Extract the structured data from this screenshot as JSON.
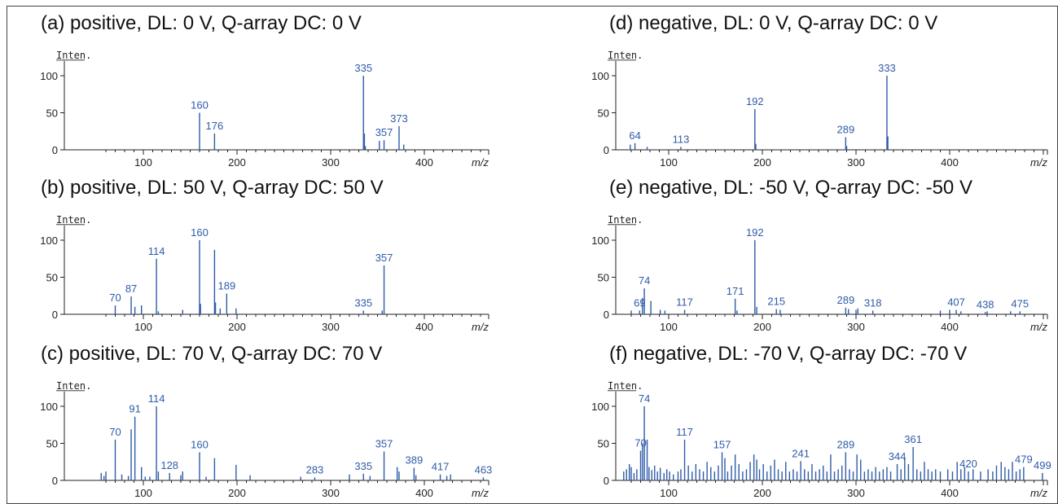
{
  "colors": {
    "peak": "#2f5ba8",
    "axis": "#222222",
    "annotation_line": "#e03030"
  },
  "chart_data": [
    {
      "type": "bar",
      "title": "(a) positive, DL: 0 V, Q-array DC: 0 V",
      "ylabel": "Inten.",
      "xlabel": "m/z",
      "xlim": [
        50,
        480
      ],
      "ylim": [
        0,
        120
      ],
      "xticks": [
        100,
        200,
        300,
        400
      ],
      "yticks": [
        0,
        50,
        100
      ],
      "peaks": [
        {
          "x": 160,
          "y": 50,
          "label": "160"
        },
        {
          "x": 176,
          "y": 22,
          "label": "176"
        },
        {
          "x": 335,
          "y": 100,
          "label": "335"
        },
        {
          "x": 336,
          "y": 22
        },
        {
          "x": 337,
          "y": 5
        },
        {
          "x": 352,
          "y": 12
        },
        {
          "x": 357,
          "y": 13,
          "label": "357"
        },
        {
          "x": 373,
          "y": 32,
          "label": "373"
        },
        {
          "x": 378,
          "y": 7
        }
      ]
    },
    {
      "type": "bar",
      "title": "(b) positive, DL: 50 V, Q-array DC: 50 V",
      "ylabel": "Inten.",
      "xlabel": "m/z",
      "xlim": [
        50,
        480
      ],
      "ylim": [
        0,
        120
      ],
      "xticks": [
        100,
        200,
        300,
        400
      ],
      "yticks": [
        0,
        50,
        100
      ],
      "peaks": [
        {
          "x": 70,
          "y": 12,
          "label": "70"
        },
        {
          "x": 87,
          "y": 24,
          "label": "87"
        },
        {
          "x": 91,
          "y": 10
        },
        {
          "x": 98,
          "y": 12
        },
        {
          "x": 114,
          "y": 75,
          "label": "114"
        },
        {
          "x": 116,
          "y": 4
        },
        {
          "x": 142,
          "y": 6
        },
        {
          "x": 160,
          "y": 100,
          "label": "160"
        },
        {
          "x": 161,
          "y": 14
        },
        {
          "x": 176,
          "y": 87
        },
        {
          "x": 177,
          "y": 16
        },
        {
          "x": 182,
          "y": 8
        },
        {
          "x": 189,
          "y": 28,
          "label": "189"
        },
        {
          "x": 199,
          "y": 8
        },
        {
          "x": 335,
          "y": 5,
          "label": "335"
        },
        {
          "x": 355,
          "y": 5
        },
        {
          "x": 357,
          "y": 66,
          "label": "357"
        }
      ]
    },
    {
      "type": "bar",
      "title": "(c) positive, DL: 70 V, Q-array DC: 70 V",
      "ylabel": "Inten.",
      "xlabel": "m/z",
      "xlim": [
        50,
        480
      ],
      "ylim": [
        0,
        120
      ],
      "xticks": [
        100,
        200,
        300,
        400
      ],
      "yticks": [
        0,
        50,
        100
      ],
      "peaks": [
        {
          "x": 55,
          "y": 10
        },
        {
          "x": 58,
          "y": 6
        },
        {
          "x": 60,
          "y": 12
        },
        {
          "x": 70,
          "y": 55,
          "label": "70"
        },
        {
          "x": 77,
          "y": 8
        },
        {
          "x": 84,
          "y": 6
        },
        {
          "x": 87,
          "y": 69
        },
        {
          "x": 91,
          "y": 86,
          "label": "91"
        },
        {
          "x": 98,
          "y": 18
        },
        {
          "x": 102,
          "y": 5
        },
        {
          "x": 107,
          "y": 5
        },
        {
          "x": 114,
          "y": 100,
          "label": "114"
        },
        {
          "x": 116,
          "y": 12
        },
        {
          "x": 128,
          "y": 10,
          "label": "128"
        },
        {
          "x": 140,
          "y": 7
        },
        {
          "x": 142,
          "y": 12
        },
        {
          "x": 160,
          "y": 38,
          "label": "160"
        },
        {
          "x": 167,
          "y": 5
        },
        {
          "x": 176,
          "y": 30
        },
        {
          "x": 199,
          "y": 21
        },
        {
          "x": 214,
          "y": 7
        },
        {
          "x": 268,
          "y": 5
        },
        {
          "x": 283,
          "y": 4,
          "label": "283"
        },
        {
          "x": 320,
          "y": 8
        },
        {
          "x": 335,
          "y": 9,
          "label": "335"
        },
        {
          "x": 342,
          "y": 6
        },
        {
          "x": 357,
          "y": 39,
          "label": "357"
        },
        {
          "x": 371,
          "y": 18
        },
        {
          "x": 373,
          "y": 12
        },
        {
          "x": 389,
          "y": 17,
          "label": "389"
        },
        {
          "x": 391,
          "y": 7
        },
        {
          "x": 417,
          "y": 8,
          "label": "417"
        },
        {
          "x": 424,
          "y": 6
        },
        {
          "x": 428,
          "y": 8
        },
        {
          "x": 463,
          "y": 4,
          "label": "463"
        }
      ]
    },
    {
      "type": "bar",
      "title": "(d) negative, DL: 0 V, Q-array DC: 0 V",
      "ylabel": "Inten.",
      "xlabel": "m/z",
      "xlim": [
        50,
        480
      ],
      "ylim": [
        0,
        120
      ],
      "xticks": [
        100,
        200,
        300,
        400
      ],
      "yticks": [
        0,
        50,
        100
      ],
      "peaks": [
        {
          "x": 59,
          "y": 7
        },
        {
          "x": 64,
          "y": 9,
          "label": "64"
        },
        {
          "x": 77,
          "y": 4
        },
        {
          "x": 113,
          "y": 4,
          "label": "113"
        },
        {
          "x": 192,
          "y": 55,
          "label": "192"
        },
        {
          "x": 193,
          "y": 8
        },
        {
          "x": 289,
          "y": 17,
          "label": "289"
        },
        {
          "x": 290,
          "y": 5
        },
        {
          "x": 333,
          "y": 100,
          "label": "333"
        },
        {
          "x": 334,
          "y": 18
        }
      ]
    },
    {
      "type": "bar",
      "title": "(e) negative, DL: -50 V, Q-array DC: -50 V",
      "ylabel": "Inten.",
      "xlabel": "m/z",
      "xlim": [
        50,
        480
      ],
      "ylim": [
        0,
        120
      ],
      "xticks": [
        100,
        200,
        300,
        400
      ],
      "yticks": [
        0,
        50,
        100
      ],
      "peaks": [
        {
          "x": 60,
          "y": 5
        },
        {
          "x": 69,
          "y": 5,
          "label": "69"
        },
        {
          "x": 72,
          "y": 22
        },
        {
          "x": 74,
          "y": 35,
          "label": "74"
        },
        {
          "x": 81,
          "y": 18
        },
        {
          "x": 91,
          "y": 6
        },
        {
          "x": 96,
          "y": 5
        },
        {
          "x": 117,
          "y": 6,
          "label": "117"
        },
        {
          "x": 171,
          "y": 21,
          "label": "171"
        },
        {
          "x": 173,
          "y": 5
        },
        {
          "x": 192,
          "y": 100,
          "label": "192"
        },
        {
          "x": 194,
          "y": 10
        },
        {
          "x": 215,
          "y": 7,
          "label": "215"
        },
        {
          "x": 219,
          "y": 6
        },
        {
          "x": 289,
          "y": 9,
          "label": "289"
        },
        {
          "x": 292,
          "y": 7
        },
        {
          "x": 300,
          "y": 6
        },
        {
          "x": 302,
          "y": 8
        },
        {
          "x": 318,
          "y": 5,
          "label": "318"
        },
        {
          "x": 390,
          "y": 5
        },
        {
          "x": 400,
          "y": 6
        },
        {
          "x": 407,
          "y": 6,
          "label": "407"
        },
        {
          "x": 412,
          "y": 4
        },
        {
          "x": 438,
          "y": 3,
          "label": "438"
        },
        {
          "x": 440,
          "y": 4
        },
        {
          "x": 465,
          "y": 4
        },
        {
          "x": 475,
          "y": 4,
          "label": "475"
        }
      ]
    },
    {
      "type": "bar",
      "title": "(f) negative, DL: -70 V, Q-array DC: -70 V",
      "ylabel": "Inten.",
      "xlabel": "m/z",
      "xlim": [
        50,
        480
      ],
      "ylim": [
        0,
        120
      ],
      "xticks": [
        100,
        200,
        300,
        400
      ],
      "yticks": [
        0,
        50,
        100
      ],
      "peaks": [
        {
          "x": 52,
          "y": 12
        },
        {
          "x": 55,
          "y": 15
        },
        {
          "x": 58,
          "y": 22
        },
        {
          "x": 60,
          "y": 18
        },
        {
          "x": 63,
          "y": 10
        },
        {
          "x": 66,
          "y": 15
        },
        {
          "x": 70,
          "y": 40,
          "label": "70"
        },
        {
          "x": 72,
          "y": 50
        },
        {
          "x": 74,
          "y": 100,
          "label": "74"
        },
        {
          "x": 77,
          "y": 55
        },
        {
          "x": 79,
          "y": 18
        },
        {
          "x": 82,
          "y": 14
        },
        {
          "x": 85,
          "y": 20
        },
        {
          "x": 88,
          "y": 12
        },
        {
          "x": 91,
          "y": 17
        },
        {
          "x": 95,
          "y": 10
        },
        {
          "x": 98,
          "y": 15
        },
        {
          "x": 101,
          "y": 12
        },
        {
          "x": 105,
          "y": 8
        },
        {
          "x": 110,
          "y": 12
        },
        {
          "x": 113,
          "y": 15
        },
        {
          "x": 117,
          "y": 55,
          "label": "117"
        },
        {
          "x": 121,
          "y": 20
        },
        {
          "x": 125,
          "y": 12
        },
        {
          "x": 129,
          "y": 22
        },
        {
          "x": 133,
          "y": 15
        },
        {
          "x": 137,
          "y": 12
        },
        {
          "x": 141,
          "y": 25
        },
        {
          "x": 145,
          "y": 18
        },
        {
          "x": 149,
          "y": 12
        },
        {
          "x": 153,
          "y": 20
        },
        {
          "x": 157,
          "y": 38,
          "label": "157"
        },
        {
          "x": 160,
          "y": 30
        },
        {
          "x": 163,
          "y": 12
        },
        {
          "x": 167,
          "y": 20
        },
        {
          "x": 171,
          "y": 35
        },
        {
          "x": 175,
          "y": 22
        },
        {
          "x": 179,
          "y": 12
        },
        {
          "x": 183,
          "y": 15
        },
        {
          "x": 187,
          "y": 25
        },
        {
          "x": 191,
          "y": 35
        },
        {
          "x": 194,
          "y": 28
        },
        {
          "x": 197,
          "y": 15
        },
        {
          "x": 201,
          "y": 22
        },
        {
          "x": 205,
          "y": 12
        },
        {
          "x": 209,
          "y": 20
        },
        {
          "x": 213,
          "y": 28
        },
        {
          "x": 217,
          "y": 15
        },
        {
          "x": 221,
          "y": 12
        },
        {
          "x": 225,
          "y": 25
        },
        {
          "x": 229,
          "y": 12
        },
        {
          "x": 233,
          "y": 15
        },
        {
          "x": 237,
          "y": 12
        },
        {
          "x": 241,
          "y": 26,
          "label": "241"
        },
        {
          "x": 245,
          "y": 15
        },
        {
          "x": 249,
          "y": 12
        },
        {
          "x": 253,
          "y": 22
        },
        {
          "x": 257,
          "y": 12
        },
        {
          "x": 261,
          "y": 15
        },
        {
          "x": 265,
          "y": 20
        },
        {
          "x": 269,
          "y": 12
        },
        {
          "x": 273,
          "y": 35
        },
        {
          "x": 277,
          "y": 12
        },
        {
          "x": 281,
          "y": 15
        },
        {
          "x": 285,
          "y": 20
        },
        {
          "x": 289,
          "y": 38,
          "label": "289"
        },
        {
          "x": 293,
          "y": 15
        },
        {
          "x": 297,
          "y": 12
        },
        {
          "x": 301,
          "y": 35
        },
        {
          "x": 305,
          "y": 28
        },
        {
          "x": 309,
          "y": 12
        },
        {
          "x": 313,
          "y": 15
        },
        {
          "x": 317,
          "y": 12
        },
        {
          "x": 321,
          "y": 18
        },
        {
          "x": 325,
          "y": 12
        },
        {
          "x": 329,
          "y": 15
        },
        {
          "x": 333,
          "y": 18
        },
        {
          "x": 337,
          "y": 12
        },
        {
          "x": 344,
          "y": 22,
          "label": "344"
        },
        {
          "x": 348,
          "y": 15
        },
        {
          "x": 352,
          "y": 30
        },
        {
          "x": 356,
          "y": 22
        },
        {
          "x": 361,
          "y": 45,
          "label": "361"
        },
        {
          "x": 365,
          "y": 15
        },
        {
          "x": 369,
          "y": 12
        },
        {
          "x": 373,
          "y": 25
        },
        {
          "x": 377,
          "y": 15
        },
        {
          "x": 381,
          "y": 12
        },
        {
          "x": 385,
          "y": 15
        },
        {
          "x": 390,
          "y": 12
        },
        {
          "x": 398,
          "y": 15
        },
        {
          "x": 403,
          "y": 12
        },
        {
          "x": 408,
          "y": 25
        },
        {
          "x": 412,
          "y": 15
        },
        {
          "x": 416,
          "y": 18
        },
        {
          "x": 420,
          "y": 12,
          "label": "420"
        },
        {
          "x": 425,
          "y": 15
        },
        {
          "x": 433,
          "y": 12
        },
        {
          "x": 441,
          "y": 15
        },
        {
          "x": 446,
          "y": 12
        },
        {
          "x": 450,
          "y": 20
        },
        {
          "x": 455,
          "y": 25
        },
        {
          "x": 459,
          "y": 18
        },
        {
          "x": 463,
          "y": 15
        },
        {
          "x": 467,
          "y": 25
        },
        {
          "x": 471,
          "y": 12
        },
        {
          "x": 475,
          "y": 15
        },
        {
          "x": 479,
          "y": 18,
          "label": "479"
        },
        {
          "x": 499,
          "y": 10,
          "label": "499"
        }
      ]
    }
  ]
}
